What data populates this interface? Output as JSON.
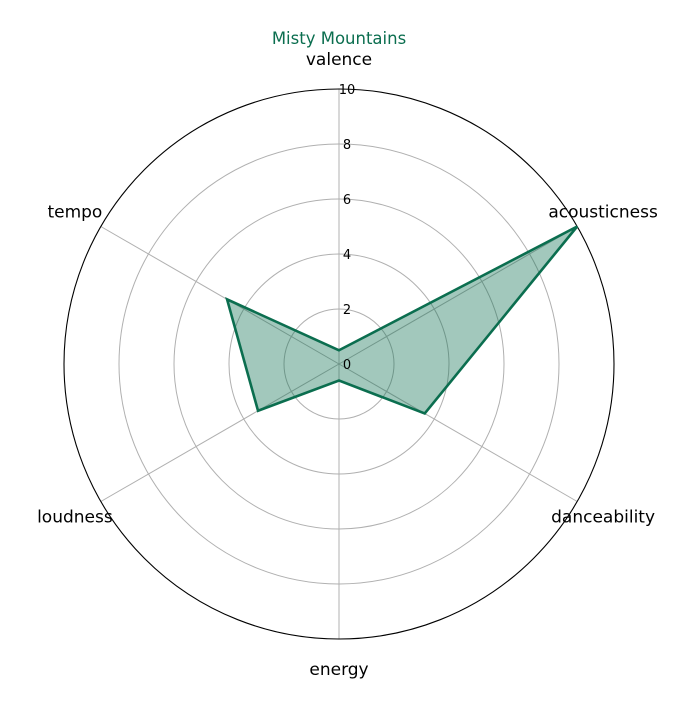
{
  "chart_data": {
    "type": "radar",
    "title": "Misty Mountains",
    "axes": [
      "valence",
      "acousticness",
      "danceability",
      "energy",
      "loudness",
      "tempo"
    ],
    "series": [
      {
        "name": "Misty Mountains",
        "values": [
          0.5,
          10.0,
          3.6,
          0.6,
          3.4,
          4.7
        ]
      }
    ],
    "r_ticks": [
      0,
      2,
      4,
      6,
      8,
      10
    ],
    "rlim": [
      0,
      10
    ],
    "grid": true,
    "colors": {
      "line": "#0b6e4f",
      "fill": "#0b6e4f",
      "fill_opacity": 0.38,
      "title": "#0b6e4f"
    }
  }
}
